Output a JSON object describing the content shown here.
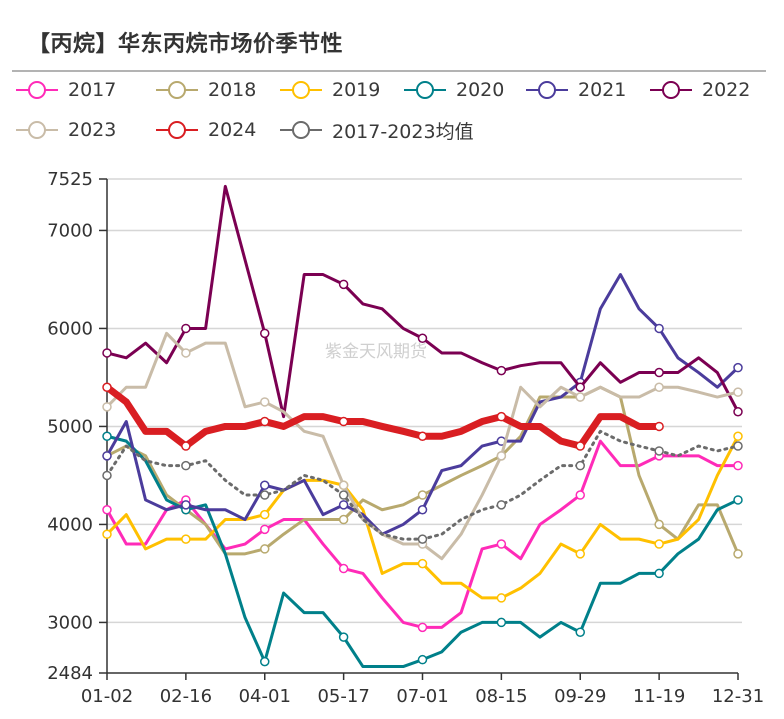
{
  "title": "【丙烷】华东丙烷市场价季节性",
  "watermark": "紫金天风期货",
  "chart_data": {
    "type": "line",
    "title": "【丙烷】华东丙烷市场价季节性",
    "xlabel": "",
    "ylabel": "",
    "ylim": [
      2484,
      7525
    ],
    "yticks": [
      "7525",
      "7000",
      "6000",
      "5000",
      "4000",
      "3000",
      "2484"
    ],
    "xticks": [
      "01-02",
      "02-16",
      "04-01",
      "05-17",
      "07-01",
      "08-15",
      "09-29",
      "11-19",
      "12-31"
    ],
    "grid": true,
    "legend_position": "top",
    "x": [
      "01-02",
      "01-13",
      "01-24",
      "02-05",
      "02-16",
      "02-27",
      "03-10",
      "03-21",
      "04-01",
      "04-12",
      "04-24",
      "05-05",
      "05-17",
      "05-28",
      "06-08",
      "06-20",
      "07-01",
      "07-12",
      "07-23",
      "08-04",
      "08-15",
      "08-26",
      "09-06",
      "09-18",
      "09-29",
      "10-12",
      "10-25",
      "11-06",
      "11-19",
      "11-29",
      "12-10",
      "12-20",
      "12-31"
    ],
    "series": [
      {
        "name": "2017",
        "color": "#ff2bb8",
        "style": "solid",
        "values": [
          4150,
          3800,
          3800,
          4150,
          4250,
          4000,
          3750,
          3800,
          3950,
          4050,
          4050,
          3800,
          3550,
          3500,
          3250,
          3000,
          2950,
          2950,
          3100,
          3750,
          3800,
          3650,
          4000,
          4150,
          4300,
          4850,
          4600,
          4600,
          4700,
          4700,
          4700,
          4600,
          4600
        ]
      },
      {
        "name": "2018",
        "color": "#b8a96e",
        "style": "solid",
        "values": [
          4700,
          4800,
          4700,
          4300,
          4150,
          4000,
          3700,
          3700,
          3750,
          3900,
          4050,
          4050,
          4050,
          4250,
          4150,
          4200,
          4300,
          4400,
          4500,
          4600,
          4700,
          4900,
          5300,
          5300,
          5300,
          5400,
          5300,
          4500,
          4000,
          3850,
          4200,
          4200,
          3700
        ]
      },
      {
        "name": "2019",
        "color": "#ffc000",
        "style": "solid",
        "values": [
          3900,
          4100,
          3750,
          3850,
          3850,
          3850,
          4050,
          4050,
          4100,
          4350,
          4450,
          4450,
          4400,
          4150,
          3500,
          3600,
          3600,
          3400,
          3400,
          3250,
          3250,
          3350,
          3500,
          3800,
          3700,
          4000,
          3850,
          3850,
          3800,
          3850,
          4050,
          4500,
          4900
        ]
      },
      {
        "name": "2020",
        "color": "#00808a",
        "style": "solid",
        "values": [
          4900,
          4850,
          4650,
          4250,
          4150,
          4200,
          3700,
          3050,
          2600,
          3300,
          3100,
          3100,
          2850,
          2550,
          2550,
          2550,
          2620,
          2700,
          2900,
          3000,
          3000,
          3000,
          2850,
          3000,
          2900,
          3400,
          3400,
          3500,
          3500,
          3700,
          3850,
          4150,
          4250
        ]
      },
      {
        "name": "2021",
        "color": "#4b3c9c",
        "style": "solid",
        "values": [
          4700,
          5050,
          4250,
          4150,
          4200,
          4150,
          4150,
          4050,
          4400,
          4350,
          4450,
          4100,
          4200,
          4100,
          3900,
          4000,
          4150,
          4550,
          4600,
          4800,
          4850,
          4850,
          5250,
          5300,
          5450,
          6200,
          6550,
          6200,
          6000,
          5700,
          5550,
          5400,
          5600
        ]
      },
      {
        "name": "2022",
        "color": "#7b0052",
        "style": "solid",
        "values": [
          5750,
          5700,
          5850,
          5650,
          6000,
          6000,
          7450,
          6700,
          5950,
          5100,
          6550,
          6550,
          6450,
          6250,
          6200,
          6000,
          5900,
          5750,
          5750,
          5650,
          5570,
          5620,
          5650,
          5650,
          5400,
          5650,
          5450,
          5550,
          5550,
          5550,
          5700,
          5550,
          5150
        ]
      },
      {
        "name": "2023",
        "color": "#c9bca8",
        "style": "solid",
        "values": [
          5200,
          5400,
          5400,
          5950,
          5750,
          5850,
          5850,
          5200,
          5250,
          5150,
          4950,
          4900,
          4400,
          4050,
          3900,
          3800,
          3800,
          3650,
          3900,
          4300,
          4700,
          5400,
          5200,
          5400,
          5300,
          5400,
          5300,
          5300,
          5400,
          5400,
          5350,
          5300,
          5350
        ]
      },
      {
        "name": "2024",
        "color": "#d91e22",
        "style": "thick",
        "values": [
          5400,
          5250,
          4950,
          4950,
          4800,
          4950,
          5000,
          5000,
          5050,
          5000,
          5100,
          5100,
          5050,
          5050,
          5000,
          4950,
          4900,
          4900,
          4950,
          5050,
          5100,
          5000,
          5000,
          4850,
          4800,
          5100,
          5100,
          5000,
          5000,
          null,
          null,
          null,
          null
        ]
      },
      {
        "name": "2017-2023均值",
        "color": "#6b6b6b",
        "style": "dotted",
        "values": [
          4500,
          4800,
          4650,
          4600,
          4600,
          4650,
          4450,
          4300,
          4300,
          4350,
          4500,
          4450,
          4300,
          4050,
          3900,
          3850,
          3850,
          3900,
          4050,
          4150,
          4200,
          4300,
          4450,
          4600,
          4600,
          4950,
          4850,
          4800,
          4750,
          4700,
          4800,
          4750,
          4800
        ]
      }
    ]
  }
}
